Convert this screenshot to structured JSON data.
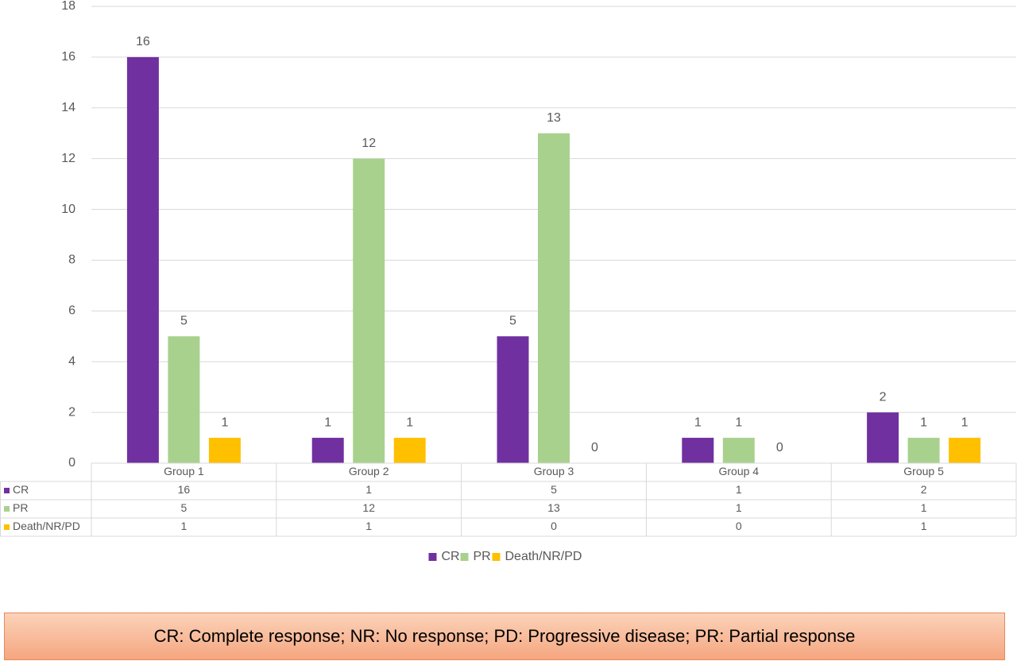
{
  "chart_data": {
    "type": "bar",
    "categories": [
      "Group 1",
      "Group 2",
      "Group 3",
      "Group 4",
      "Group 5"
    ],
    "series": [
      {
        "name": "CR",
        "color": "#7030a0",
        "values": [
          16,
          1,
          5,
          1,
          2
        ]
      },
      {
        "name": "PR",
        "color": "#a9d18e",
        "values": [
          5,
          12,
          13,
          1,
          1
        ]
      },
      {
        "name": "Death/NR/PD",
        "color": "#ffc000",
        "values": [
          1,
          1,
          0,
          0,
          1
        ]
      }
    ],
    "ylim": [
      0,
      18
    ],
    "yticks": [
      0,
      2,
      4,
      6,
      8,
      10,
      12,
      14,
      16,
      18
    ],
    "grid": true,
    "annotation": "CR: Complete response; NR: No response; PD: Progressive disease; PR: Partial response"
  }
}
